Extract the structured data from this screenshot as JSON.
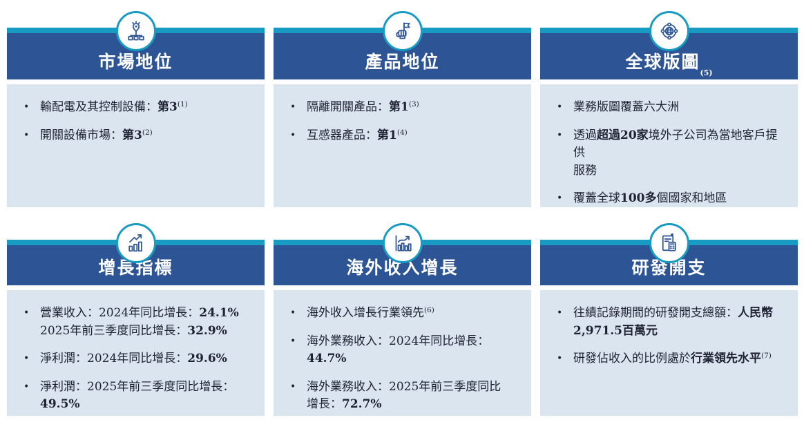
{
  "theme": {
    "accent_teal": "#189BC2",
    "header_blue": "#2D5596",
    "panel_bg": "#DBE5F0",
    "text_color": "#1E2233",
    "title_color": "#FFFFFF"
  },
  "cards": [
    {
      "id": "market-position",
      "icon": "network-pin-icon",
      "title": "市場地位",
      "title_footnote": "",
      "bullets": [
        {
          "lines": [
            [
              {
                "t": "輸配電及其控制設備："
              },
              {
                "t": "第3",
                "b": true
              },
              {
                "t": "(1)",
                "sup": true
              }
            ]
          ]
        },
        {
          "lines": [
            [
              {
                "t": "開關設備市場："
              },
              {
                "t": "第3",
                "b": true
              },
              {
                "t": "(2)",
                "sup": true
              }
            ]
          ]
        }
      ]
    },
    {
      "id": "product-position",
      "icon": "flag-in-hand-icon",
      "title": "產品地位",
      "title_footnote": "",
      "bullets": [
        {
          "lines": [
            [
              {
                "t": "隔離開關產品："
              },
              {
                "t": "第1",
                "b": true
              },
              {
                "t": "(3)",
                "sup": true
              }
            ]
          ]
        },
        {
          "lines": [
            [
              {
                "t": "互感器產品："
              },
              {
                "t": "第1",
                "b": true
              },
              {
                "t": "(4)",
                "sup": true
              }
            ]
          ]
        }
      ]
    },
    {
      "id": "global-footprint",
      "icon": "globe-network-icon",
      "title": "全球版圖",
      "title_footnote": "(5)",
      "bullets": [
        {
          "lines": [
            [
              {
                "t": "業務版圖覆蓋六大洲"
              }
            ]
          ]
        },
        {
          "lines": [
            [
              {
                "t": "透過"
              },
              {
                "t": "超過20家",
                "b": true
              },
              {
                "t": "境外子公司為當地客戶提供"
              }
            ],
            [
              {
                "t": "服務"
              }
            ]
          ]
        },
        {
          "lines": [
            [
              {
                "t": "覆蓋全球"
              },
              {
                "t": "100多",
                "b": true
              },
              {
                "t": "個國家和地區"
              }
            ]
          ]
        }
      ]
    },
    {
      "id": "growth-metrics",
      "icon": "rising-bar-chart-icon",
      "title": "增長指標",
      "title_footnote": "",
      "bullets": [
        {
          "lines": [
            [
              {
                "t": "營業收入：2024年同比增長："
              },
              {
                "t": "24.1%",
                "b": true
              }
            ],
            [
              {
                "t": "2025年前三季度同比增長："
              },
              {
                "t": "32.9%",
                "b": true
              }
            ]
          ]
        },
        {
          "lines": [
            [
              {
                "t": "淨利潤：2024年同比增長："
              },
              {
                "t": "29.6%",
                "b": true
              }
            ]
          ]
        },
        {
          "lines": [
            [
              {
                "t": "淨利潤：2025年前三季度同比增長："
              },
              {
                "t": "49.5%",
                "b": true
              }
            ]
          ]
        }
      ]
    },
    {
      "id": "overseas-revenue-growth",
      "icon": "overseas-growth-chart-icon",
      "title": "海外收入增長",
      "title_footnote": "",
      "bullets": [
        {
          "lines": [
            [
              {
                "t": "海外收入增長行業領先"
              },
              {
                "t": "(6)",
                "sup": true
              }
            ]
          ]
        },
        {
          "lines": [
            [
              {
                "t": "海外業務收入：2024年同比增長："
              },
              {
                "t": "44.7%",
                "b": true
              }
            ]
          ]
        },
        {
          "lines": [
            [
              {
                "t": "海外業務收入：2025年前三季度同比"
              }
            ],
            [
              {
                "t": "增長："
              },
              {
                "t": "72.7%",
                "b": true
              }
            ]
          ]
        }
      ]
    },
    {
      "id": "rd-expenditure",
      "icon": "expense-report-icon",
      "title": "研發開支",
      "title_footnote": "",
      "bullets": [
        {
          "lines": [
            [
              {
                "t": "往績記錄期間的研發開支總額："
              },
              {
                "t": "人民幣",
                "b": true
              }
            ],
            [
              {
                "t": "2,971.5百萬元",
                "b": true
              }
            ]
          ]
        },
        {
          "lines": [
            [
              {
                "t": "研發佔收入的比例處於"
              },
              {
                "t": "行業領先水平",
                "b": true
              },
              {
                "t": "(7)",
                "sup": true
              }
            ]
          ]
        }
      ]
    }
  ]
}
